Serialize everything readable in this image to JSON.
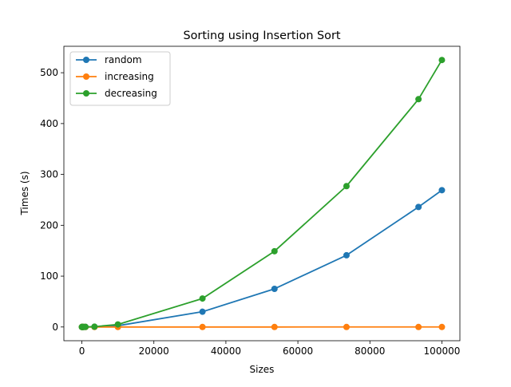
{
  "chart_data": {
    "type": "line",
    "title": "Sorting using Insertion Sort",
    "xlabel": "Sizes",
    "ylabel": "Times (s)",
    "xlim": [
      -5000,
      105000
    ],
    "ylim": [
      -27,
      552
    ],
    "xticks": [
      0,
      20000,
      40000,
      60000,
      80000,
      100000
    ],
    "yticks": [
      0,
      100,
      200,
      300,
      400,
      500
    ],
    "x": [
      10,
      50,
      100,
      200,
      500,
      1000,
      3500,
      10000,
      33500,
      53500,
      73500,
      93500,
      100000
    ],
    "series": [
      {
        "name": "random",
        "color": "#1f77b4",
        "values": [
          0,
          0,
          0,
          0,
          0,
          0.1,
          0.3,
          2.5,
          30,
          75,
          141,
          236,
          269
        ]
      },
      {
        "name": "increasing",
        "color": "#ff7f0e",
        "values": [
          0,
          0,
          0,
          0,
          0,
          0,
          0,
          0,
          0.01,
          0.01,
          0.02,
          0.02,
          0.02
        ]
      },
      {
        "name": "decreasing",
        "color": "#2ca02c",
        "values": [
          0,
          0,
          0,
          0,
          0,
          0.2,
          0.6,
          5,
          56,
          149,
          277,
          448,
          525
        ]
      }
    ],
    "legend_position": "upper-left",
    "grid": false
  }
}
